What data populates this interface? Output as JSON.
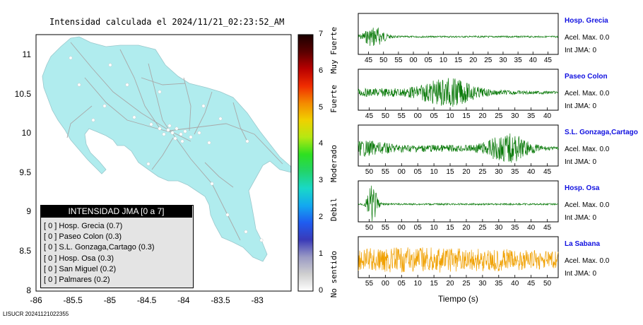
{
  "map_title": "Intensidad calculada el 2024/11/21_02:23:52_AM",
  "legend": {
    "title": "INTENSIDAD JMA [0 a 7]",
    "items": [
      {
        "text": "[ 0 ]  Hosp. Grecia (0.7)"
      },
      {
        "text": "[ 0 ]  Paseo Colon (0.3)"
      },
      {
        "text": "[ 0 ]  S.L. Gonzaga,Cartago (0.3)"
      },
      {
        "text": "[ 0 ]  Hosp. Osa (0.3)"
      },
      {
        "text": "[ 0 ]  San Miguel (0.2)"
      },
      {
        "text": "[ 0 ]  Palmares (0.2)"
      }
    ]
  },
  "colorbar": {
    "ticks": [
      "0",
      "1",
      "2",
      "3",
      "4",
      "5",
      "6",
      "7"
    ],
    "labels": [
      "No sentido",
      "Debil",
      "Moderado",
      "Fuerte",
      "Muy Fuerte"
    ],
    "colors": [
      "#ffffff",
      "#cfcfcf",
      "#9a9ac4",
      "#3a3ab8",
      "#1f5cf0",
      "#13a8f0",
      "#19d8c8",
      "#22d46a",
      "#2ee020",
      "#b6e812",
      "#f0d000",
      "#f48a00",
      "#f02c00",
      "#b80000",
      "#5a0000",
      "#1a0000"
    ]
  },
  "map": {
    "land_color": "#b0ecee",
    "xticks": [
      "-86",
      "-85.5",
      "-85",
      "-84.5",
      "-84",
      "-83.5",
      "-83"
    ],
    "yticks": [
      "11",
      "10.5",
      "10",
      "9.5",
      "9",
      "8.5",
      "8"
    ]
  },
  "stations": [
    {
      "name": "Hosp. Grecia",
      "acel": "Acel. Max. 0.0",
      "jma": "Int JMA: 0",
      "color": "#0a7a0a",
      "ticks": [
        "45",
        "50",
        "55",
        "00",
        "05",
        "10",
        "15",
        "20",
        "25",
        "30",
        "35",
        "40",
        "45"
      ]
    },
    {
      "name": "Paseo Colon",
      "acel": "Acel. Max. 0.0",
      "jma": "Int JMA: 0",
      "color": "#0a7a0a",
      "ticks": [
        "45",
        "50",
        "55",
        "00",
        "05",
        "10",
        "15",
        "20",
        "25",
        "30",
        "35",
        "40"
      ]
    },
    {
      "name": "S.L. Gonzaga,Cartago",
      "acel": "Acel. Max. 0.0",
      "jma": "Int JMA: 0",
      "color": "#0a7a0a",
      "ticks": [
        "50",
        "55",
        "00",
        "05",
        "10",
        "15",
        "20",
        "25",
        "30",
        "35",
        "40",
        "45"
      ]
    },
    {
      "name": "Hosp. Osa",
      "acel": "Acel. Max. 0.0",
      "jma": "Int JMA: 0",
      "color": "#0a7a0a",
      "ticks": [
        "50",
        "55",
        "00",
        "05",
        "10",
        "15",
        "20",
        "25",
        "30",
        "35",
        "40",
        "45"
      ]
    },
    {
      "name": "La Sabana",
      "acel": "Acel. Max. 0.0",
      "jma": "Int JMA: 0",
      "color": "#f0a000",
      "ticks": [
        "55",
        "00",
        "05",
        "10",
        "15",
        "20",
        "25",
        "30",
        "35",
        "40",
        "45",
        "50"
      ]
    }
  ],
  "time_label": "Tiempo (s)",
  "footer": "LISUCR 20241121022355"
}
